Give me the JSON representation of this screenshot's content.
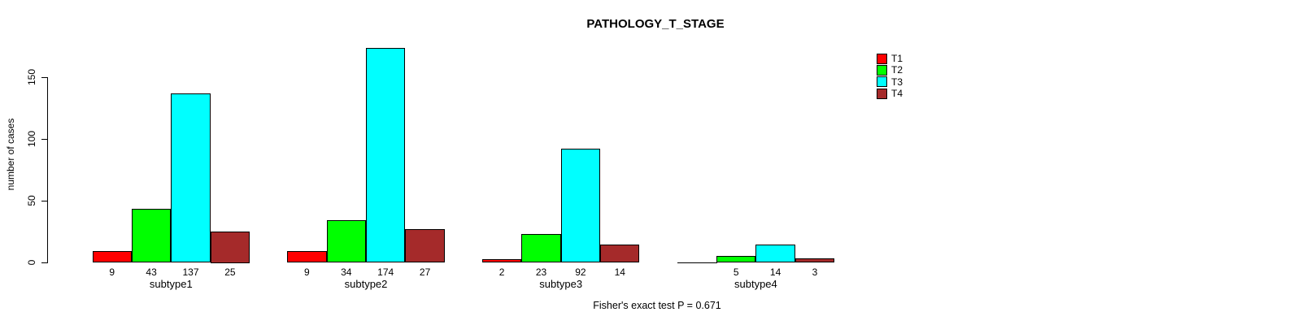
{
  "chart_data": {
    "type": "bar",
    "title": "PATHOLOGY_T_STAGE",
    "ylabel": "number of cases",
    "xlabel": "",
    "categories": [
      "subtype1",
      "subtype2",
      "subtype3",
      "subtype4"
    ],
    "series": [
      {
        "name": "T1",
        "color": "#ff0000",
        "values": [
          9,
          9,
          2,
          0
        ],
        "labels": [
          "9",
          "9",
          "2",
          ""
        ]
      },
      {
        "name": "T2",
        "color": "#00ff00",
        "values": [
          43,
          34,
          23,
          5
        ],
        "labels": [
          "43",
          "34",
          "23",
          "5"
        ]
      },
      {
        "name": "T3",
        "color": "#00ffff",
        "values": [
          137,
          174,
          92,
          14
        ],
        "labels": [
          "137",
          "174",
          "92",
          "14"
        ]
      },
      {
        "name": "T4",
        "color": "#a52a2a",
        "values": [
          25,
          27,
          14,
          3
        ],
        "labels": [
          "25",
          "27",
          "14",
          "3"
        ]
      }
    ],
    "yticks": [
      0,
      50,
      100,
      150
    ],
    "ylim": [
      0,
      150
    ],
    "grid": false,
    "legend_position": "topright",
    "legend_entries": [
      "T1",
      "T2",
      "T3",
      "T4"
    ],
    "annotation": "Fisher's exact test P = 0.671"
  },
  "colors": {
    "background": "#ffffff",
    "axis": "#000000",
    "text": "#000000"
  }
}
